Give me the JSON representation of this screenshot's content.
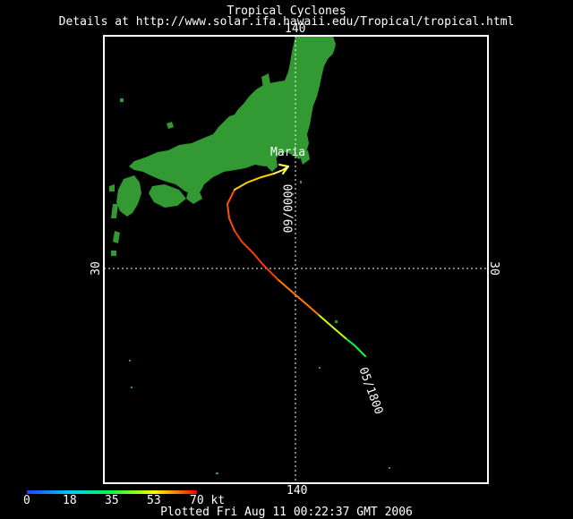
{
  "header": {
    "title": "Tropical Cyclones",
    "subtitle": "Details at http://www.solar.ifa.hawaii.edu/Tropical/tropical.html"
  },
  "map": {
    "lon_label_top": "140",
    "lon_label_bottom": "140",
    "lat_label_left": "30",
    "lat_label_right": "30",
    "land_color": "#339933",
    "frame_color": "#ffffff",
    "gridline_style": "dotted"
  },
  "storm": {
    "name": "Maria",
    "start_label": "05/1800",
    "end_label": "09/0000"
  },
  "legend": {
    "ticks": [
      "0",
      "18",
      "35",
      "53",
      "70 kt"
    ],
    "colors": [
      "#2040ff",
      "#00c8ff",
      "#00ff40",
      "#ffff00",
      "#ff0000"
    ]
  },
  "footer": {
    "plotted": "Plotted Fri Aug 11 00:22:37 GMT 2006"
  }
}
